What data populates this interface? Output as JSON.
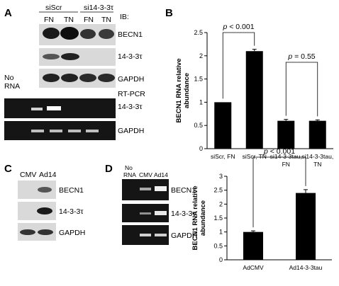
{
  "panel_labels": {
    "a": "A",
    "b": "B",
    "c": "C",
    "d": "D"
  },
  "panel_a": {
    "group_labels": [
      "siScr",
      "si14-3-3τ"
    ],
    "lane_labels": [
      "FN",
      "TN",
      "FN",
      "TN"
    ],
    "ib_label": "IB:",
    "blot_labels": [
      "BECN1",
      "14-3-3τ",
      "GAPDH"
    ],
    "no_rna_label": [
      "No",
      "RNA"
    ],
    "rtpcr_label": "RT-PCR",
    "pcr_labels": [
      "14-3-3τ",
      "GAPDH"
    ]
  },
  "panel_c": {
    "lane_labels": [
      "CMV",
      "Ad14"
    ],
    "blot_labels": [
      "BECN1",
      "14-3-3τ",
      "GAPDH"
    ]
  },
  "panel_d": {
    "lane_labels": [
      "No RNA",
      "CMV",
      "Ad14"
    ],
    "no_rna_lines": [
      "No",
      "RNA"
    ],
    "gel_labels": [
      "BECN1",
      "14-3-3τ",
      "GAPDH"
    ]
  },
  "chart_data": [
    {
      "type": "bar",
      "panel": "B",
      "categories": [
        "siScr, FN",
        "siScr, TN",
        "si14-3-3tau, FN",
        "si14-3-3tau, TN"
      ],
      "category_lines": [
        [
          "siScr, FN"
        ],
        [
          "siScr, TN"
        ],
        [
          "si14-3-3tau,",
          "FN"
        ],
        [
          "si14-3-3tau,",
          "TN"
        ]
      ],
      "values": [
        1.0,
        2.1,
        0.6,
        0.6
      ],
      "errors": [
        0.0,
        0.04,
        0.03,
        0.02
      ],
      "ylabel": "BECN1 RNA relative abundance",
      "ylabel_lines": [
        "BECN1 RNA relative",
        "abundance"
      ],
      "ylim": [
        0,
        2.5
      ],
      "yticks": [
        "0",
        "0.5",
        "1",
        "1.5",
        "2",
        "2.5"
      ],
      "annotations": [
        {
          "text": "p < 0.001",
          "between": [
            0,
            1
          ]
        },
        {
          "text": "p = 0.55",
          "between": [
            2,
            3
          ]
        }
      ],
      "grid": false
    },
    {
      "type": "bar",
      "panel": "D",
      "categories": [
        "AdCMV",
        "Ad14-3-3tau"
      ],
      "values": [
        1.0,
        2.4
      ],
      "errors": [
        0.04,
        0.12
      ],
      "ylabel": "BECN1 RNA relative abundance",
      "ylabel_lines": [
        "BECN1 RNA relative",
        "abundance"
      ],
      "ylim": [
        0,
        3
      ],
      "yticks": [
        "0",
        "0.5",
        "1",
        "1.5",
        "2",
        "2.5",
        "3"
      ],
      "annotations": [
        {
          "text": "p < 0.001",
          "between": [
            0,
            1
          ]
        }
      ],
      "grid": false
    }
  ]
}
